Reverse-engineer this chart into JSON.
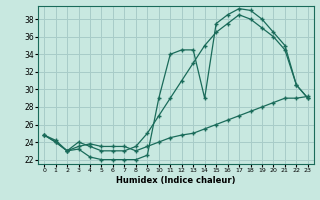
{
  "xlabel": "Humidex (Indice chaleur)",
  "bg_color": "#c8e8e0",
  "grid_color": "#a8ccc8",
  "line_color": "#1a6b5a",
  "xlim": [
    -0.5,
    23.5
  ],
  "ylim": [
    21.5,
    39.5
  ],
  "xticks": [
    0,
    1,
    2,
    3,
    4,
    5,
    6,
    7,
    8,
    9,
    10,
    11,
    12,
    13,
    14,
    15,
    16,
    17,
    18,
    19,
    20,
    21,
    22,
    23
  ],
  "yticks": [
    22,
    24,
    26,
    28,
    30,
    32,
    34,
    36,
    38
  ],
  "line1_x": [
    0,
    1,
    2,
    3,
    4,
    5,
    6,
    7,
    8,
    9,
    10,
    11,
    12,
    13,
    14,
    15,
    16,
    17,
    18,
    19,
    20,
    21,
    22,
    23
  ],
  "line1_y": [
    24.8,
    24.0,
    23.0,
    23.2,
    22.3,
    22.0,
    22.0,
    22.0,
    22.0,
    22.5,
    29.0,
    34.0,
    34.5,
    34.5,
    29.0,
    37.5,
    38.5,
    39.2,
    39.0,
    38.0,
    36.5,
    35.0,
    30.5,
    29.0
  ],
  "line2_x": [
    0,
    1,
    2,
    3,
    4,
    5,
    6,
    7,
    8,
    9,
    10,
    11,
    12,
    13,
    14,
    15,
    16,
    17,
    18,
    19,
    20,
    21,
    22,
    23
  ],
  "line2_y": [
    24.8,
    24.0,
    23.0,
    24.0,
    23.5,
    23.0,
    23.0,
    23.0,
    23.5,
    25.0,
    27.0,
    29.0,
    31.0,
    33.0,
    35.0,
    36.5,
    37.5,
    38.5,
    38.0,
    37.0,
    36.0,
    34.5,
    30.5,
    29.0
  ],
  "line3_x": [
    0,
    1,
    2,
    3,
    4,
    5,
    6,
    7,
    8,
    9,
    10,
    11,
    12,
    13,
    14,
    15,
    16,
    17,
    18,
    19,
    20,
    21,
    22,
    23
  ],
  "line3_y": [
    24.8,
    24.2,
    23.0,
    23.5,
    23.8,
    23.5,
    23.5,
    23.5,
    23.0,
    23.5,
    24.0,
    24.5,
    24.8,
    25.0,
    25.5,
    26.0,
    26.5,
    27.0,
    27.5,
    28.0,
    28.5,
    29.0,
    29.0,
    29.2
  ]
}
